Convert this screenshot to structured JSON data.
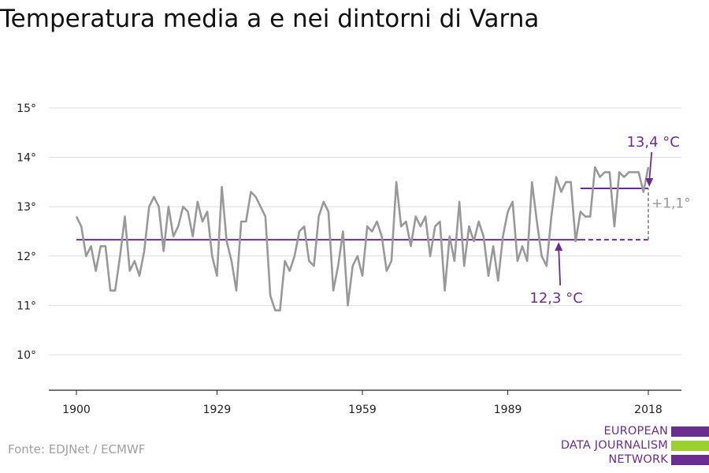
{
  "title": "Temperatura media a e nei dintorni di Varna",
  "source": "Fonte: EDJNet / ECMWF",
  "logo": {
    "lines": [
      "EUROPEAN",
      "DATA JOURNALISM",
      "NETWORK"
    ],
    "colors": [
      "#6b2d8f",
      "#9bd12e",
      "#6b2d8f"
    ]
  },
  "chart_data": {
    "type": "line",
    "title": "Temperatura media a e nei dintorni di Varna",
    "xlabel": "",
    "ylabel": "",
    "xlim": [
      1897,
      2024
    ],
    "ylim": [
      9.3,
      15.3
    ],
    "x_ticks": [
      1900,
      1929,
      1959,
      1989,
      2018
    ],
    "x_tick_labels": [
      "1900",
      "1929",
      "1959",
      "1989",
      "2018"
    ],
    "y_ticks": [
      10,
      11,
      12,
      13,
      14,
      15
    ],
    "y_tick_labels": [
      "10°",
      "11°",
      "12°",
      "13°",
      "14°",
      "15°"
    ],
    "grid": "horizontal",
    "series": [
      {
        "color": "#999999",
        "x_start": 1900,
        "values": [
          12.8,
          12.6,
          12.0,
          12.2,
          11.7,
          12.2,
          12.2,
          11.3,
          11.3,
          12.0,
          12.8,
          11.7,
          11.9,
          11.6,
          12.1,
          13.0,
          13.2,
          13.0,
          12.1,
          13.0,
          12.4,
          12.6,
          13.0,
          12.9,
          12.4,
          13.1,
          12.7,
          12.9,
          12.0,
          11.6,
          13.4,
          12.3,
          11.9,
          11.3,
          12.7,
          12.7,
          13.3,
          13.2,
          13.0,
          12.8,
          11.2,
          10.9,
          10.9,
          11.9,
          11.7,
          12.0,
          12.5,
          12.6,
          11.9,
          11.8,
          12.8,
          13.1,
          12.9,
          11.3,
          11.8,
          12.5,
          11.0,
          11.8,
          12.0,
          11.6,
          12.6,
          12.5,
          12.7,
          12.4,
          11.7,
          11.9,
          13.5,
          12.6,
          12.7,
          12.2,
          12.8,
          12.6,
          12.8,
          12.0,
          12.6,
          12.7,
          11.3,
          12.4,
          11.9,
          13.1,
          11.8,
          12.6,
          12.3,
          12.7,
          12.4,
          11.6,
          12.2,
          11.5,
          12.4,
          12.9,
          13.1,
          11.9,
          12.2,
          11.9,
          13.5,
          12.7,
          12.0,
          11.8,
          12.8,
          13.6,
          13.3,
          13.5,
          13.5,
          12.3,
          12.9,
          12.8,
          12.8,
          13.8,
          13.6,
          13.7,
          13.7,
          12.6,
          13.7,
          13.6,
          13.7,
          13.7,
          13.7,
          13.3,
          13.8
        ]
      }
    ],
    "reference_lines": [
      {
        "label": "12,3 °C",
        "value": 12.33,
        "x_from": 1900,
        "x_to": 2004,
        "style": "solid",
        "color": "#6b2d8f"
      },
      {
        "label": "",
        "value": 12.33,
        "x_from": 2004,
        "x_to": 2018,
        "style": "dashed",
        "color": "#6b2d8f"
      },
      {
        "label": "13,4 °C",
        "value": 13.37,
        "x_from": 2004,
        "x_to": 2018,
        "style": "solid",
        "color": "#6b2d8f"
      }
    ],
    "difference_annotation": {
      "label": "+1,1°",
      "x": 2018,
      "from": 12.33,
      "to": 13.37,
      "color": "#999999"
    }
  }
}
